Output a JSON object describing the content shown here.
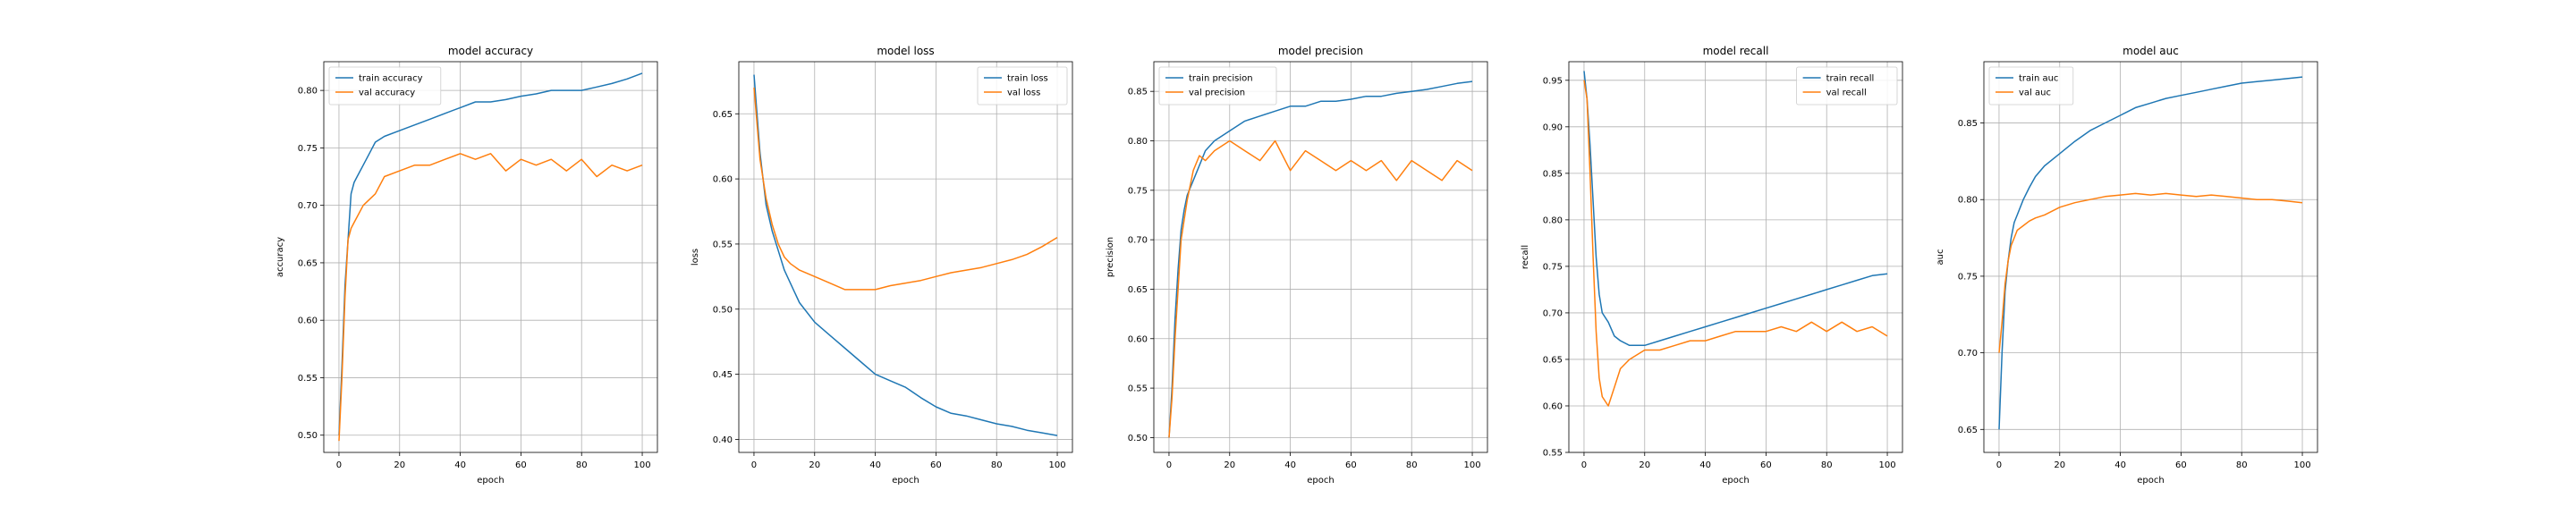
{
  "colors": {
    "train": "#1f77b4",
    "val": "#ff7f0e",
    "grid": "#b0b0b0"
  },
  "chart_data": [
    {
      "type": "line",
      "title": "model accuracy",
      "xlabel": "epoch",
      "ylabel": "accuracy",
      "xlim": [
        -5,
        105
      ],
      "ylim": [
        0.485,
        0.825
      ],
      "xticks": [
        0,
        20,
        40,
        60,
        80,
        100
      ],
      "yticks": [
        0.5,
        0.55,
        0.6,
        0.65,
        0.7,
        0.75,
        0.8
      ],
      "tick_labels_y": [
        "0.50",
        "0.55",
        "0.60",
        "0.65",
        "0.70",
        "0.75",
        "0.80"
      ],
      "tick_labels_x": [
        "0",
        "20",
        "40",
        "60",
        "80",
        "100"
      ],
      "grid": true,
      "legend_position": "top-left",
      "series": [
        {
          "name": "train accuracy",
          "color": "#1f77b4",
          "x": [
            0,
            1,
            2,
            3,
            4,
            5,
            6,
            8,
            10,
            12,
            15,
            20,
            25,
            30,
            35,
            40,
            45,
            50,
            55,
            60,
            65,
            70,
            75,
            80,
            85,
            90,
            95,
            100
          ],
          "y": [
            0.5,
            0.56,
            0.63,
            0.67,
            0.71,
            0.72,
            0.725,
            0.735,
            0.745,
            0.755,
            0.76,
            0.765,
            0.77,
            0.775,
            0.78,
            0.785,
            0.79,
            0.79,
            0.792,
            0.795,
            0.797,
            0.8,
            0.8,
            0.8,
            0.803,
            0.806,
            0.81,
            0.815
          ]
        },
        {
          "name": "val accuracy",
          "color": "#ff7f0e",
          "x": [
            0,
            1,
            2,
            3,
            4,
            5,
            6,
            8,
            10,
            12,
            15,
            20,
            25,
            30,
            35,
            40,
            45,
            50,
            55,
            60,
            65,
            70,
            75,
            80,
            85,
            90,
            95,
            100
          ],
          "y": [
            0.495,
            0.55,
            0.62,
            0.67,
            0.68,
            0.685,
            0.69,
            0.7,
            0.705,
            0.71,
            0.725,
            0.73,
            0.735,
            0.735,
            0.74,
            0.745,
            0.74,
            0.745,
            0.73,
            0.74,
            0.735,
            0.74,
            0.73,
            0.74,
            0.725,
            0.735,
            0.73,
            0.735
          ]
        }
      ]
    },
    {
      "type": "line",
      "title": "model loss",
      "xlabel": "epoch",
      "ylabel": "loss",
      "xlim": [
        -5,
        105
      ],
      "ylim": [
        0.39,
        0.69
      ],
      "xticks": [
        0,
        20,
        40,
        60,
        80,
        100
      ],
      "yticks": [
        0.4,
        0.45,
        0.5,
        0.55,
        0.6,
        0.65
      ],
      "tick_labels_y": [
        "0.40",
        "0.45",
        "0.50",
        "0.55",
        "0.60",
        "0.65"
      ],
      "tick_labels_x": [
        "0",
        "20",
        "40",
        "60",
        "80",
        "100"
      ],
      "grid": true,
      "legend_position": "top-right",
      "series": [
        {
          "name": "train loss",
          "color": "#1f77b4",
          "x": [
            0,
            2,
            4,
            6,
            8,
            10,
            12,
            15,
            20,
            25,
            30,
            35,
            40,
            45,
            50,
            55,
            60,
            65,
            70,
            75,
            80,
            85,
            90,
            95,
            100
          ],
          "y": [
            0.68,
            0.62,
            0.58,
            0.56,
            0.545,
            0.53,
            0.52,
            0.505,
            0.49,
            0.48,
            0.47,
            0.46,
            0.45,
            0.445,
            0.44,
            0.432,
            0.425,
            0.42,
            0.418,
            0.415,
            0.412,
            0.41,
            0.407,
            0.405,
            0.403
          ]
        },
        {
          "name": "val loss",
          "color": "#ff7f0e",
          "x": [
            0,
            2,
            4,
            6,
            8,
            10,
            12,
            15,
            20,
            25,
            30,
            35,
            40,
            45,
            50,
            55,
            60,
            65,
            70,
            75,
            80,
            85,
            90,
            95,
            100
          ],
          "y": [
            0.67,
            0.615,
            0.585,
            0.565,
            0.55,
            0.54,
            0.535,
            0.53,
            0.525,
            0.52,
            0.515,
            0.515,
            0.515,
            0.518,
            0.52,
            0.522,
            0.525,
            0.528,
            0.53,
            0.532,
            0.535,
            0.538,
            0.542,
            0.548,
            0.555
          ]
        }
      ]
    },
    {
      "type": "line",
      "title": "model precision",
      "xlabel": "epoch",
      "ylabel": "precision",
      "xlim": [
        -5,
        105
      ],
      "ylim": [
        0.485,
        0.88
      ],
      "xticks": [
        0,
        20,
        40,
        60,
        80,
        100
      ],
      "yticks": [
        0.5,
        0.55,
        0.6,
        0.65,
        0.7,
        0.75,
        0.8,
        0.85
      ],
      "tick_labels_y": [
        "0.50",
        "0.55",
        "0.60",
        "0.65",
        "0.70",
        "0.75",
        "0.80",
        "0.85"
      ],
      "tick_labels_x": [
        "0",
        "20",
        "40",
        "60",
        "80",
        "100"
      ],
      "grid": true,
      "legend_position": "top-left",
      "series": [
        {
          "name": "train precision",
          "color": "#1f77b4",
          "x": [
            0,
            1,
            2,
            3,
            4,
            5,
            6,
            8,
            10,
            12,
            15,
            20,
            25,
            30,
            35,
            40,
            45,
            50,
            55,
            60,
            65,
            70,
            75,
            80,
            85,
            90,
            95,
            100
          ],
          "y": [
            0.5,
            0.55,
            0.62,
            0.67,
            0.71,
            0.73,
            0.745,
            0.76,
            0.775,
            0.79,
            0.8,
            0.81,
            0.82,
            0.825,
            0.83,
            0.835,
            0.835,
            0.84,
            0.84,
            0.842,
            0.845,
            0.845,
            0.848,
            0.85,
            0.852,
            0.855,
            0.858,
            0.86
          ]
        },
        {
          "name": "val precision",
          "color": "#ff7f0e",
          "x": [
            0,
            1,
            2,
            3,
            4,
            5,
            6,
            8,
            10,
            12,
            15,
            20,
            25,
            30,
            35,
            40,
            45,
            50,
            55,
            60,
            65,
            70,
            75,
            80,
            85,
            90,
            95,
            100
          ],
          "y": [
            0.5,
            0.54,
            0.6,
            0.65,
            0.7,
            0.72,
            0.74,
            0.77,
            0.785,
            0.78,
            0.79,
            0.8,
            0.79,
            0.78,
            0.8,
            0.77,
            0.79,
            0.78,
            0.77,
            0.78,
            0.77,
            0.78,
            0.76,
            0.78,
            0.77,
            0.76,
            0.78,
            0.77
          ]
        }
      ]
    },
    {
      "type": "line",
      "title": "model recall",
      "xlabel": "epoch",
      "ylabel": "recall",
      "xlim": [
        -5,
        105
      ],
      "ylim": [
        0.55,
        0.97
      ],
      "xticks": [
        0,
        20,
        40,
        60,
        80,
        100
      ],
      "yticks": [
        0.55,
        0.6,
        0.65,
        0.7,
        0.75,
        0.8,
        0.85,
        0.9,
        0.95
      ],
      "tick_labels_y": [
        "0.55",
        "0.60",
        "0.65",
        "0.70",
        "0.75",
        "0.80",
        "0.85",
        "0.90",
        "0.95"
      ],
      "tick_labels_x": [
        "0",
        "20",
        "40",
        "60",
        "80",
        "100"
      ],
      "grid": true,
      "legend_position": "top-right",
      "series": [
        {
          "name": "train recall",
          "color": "#1f77b4",
          "x": [
            0,
            1,
            2,
            3,
            4,
            5,
            6,
            8,
            10,
            12,
            15,
            20,
            25,
            30,
            35,
            40,
            45,
            50,
            55,
            60,
            65,
            70,
            75,
            80,
            85,
            90,
            95,
            100
          ],
          "y": [
            0.96,
            0.93,
            0.88,
            0.82,
            0.76,
            0.72,
            0.7,
            0.69,
            0.675,
            0.67,
            0.665,
            0.665,
            0.67,
            0.675,
            0.68,
            0.685,
            0.69,
            0.695,
            0.7,
            0.705,
            0.71,
            0.715,
            0.72,
            0.725,
            0.73,
            0.735,
            0.74,
            0.742
          ]
        },
        {
          "name": "val recall",
          "color": "#ff7f0e",
          "x": [
            0,
            1,
            2,
            3,
            4,
            5,
            6,
            8,
            10,
            12,
            15,
            20,
            25,
            30,
            35,
            40,
            45,
            50,
            55,
            60,
            65,
            70,
            75,
            80,
            85,
            90,
            95,
            100
          ],
          "y": [
            0.95,
            0.93,
            0.85,
            0.76,
            0.68,
            0.63,
            0.61,
            0.6,
            0.62,
            0.64,
            0.65,
            0.66,
            0.66,
            0.665,
            0.67,
            0.67,
            0.675,
            0.68,
            0.68,
            0.68,
            0.685,
            0.68,
            0.69,
            0.68,
            0.69,
            0.68,
            0.685,
            0.675
          ]
        }
      ]
    },
    {
      "type": "line",
      "title": "model auc",
      "xlabel": "epoch",
      "ylabel": "auc",
      "xlim": [
        -5,
        105
      ],
      "ylim": [
        0.635,
        0.89
      ],
      "xticks": [
        0,
        20,
        40,
        60,
        80,
        100
      ],
      "yticks": [
        0.65,
        0.7,
        0.75,
        0.8,
        0.85
      ],
      "tick_labels_y": [
        "0.65",
        "0.70",
        "0.75",
        "0.80",
        "0.85"
      ],
      "tick_labels_x": [
        "0",
        "20",
        "40",
        "60",
        "80",
        "100"
      ],
      "grid": true,
      "legend_position": "top-left",
      "series": [
        {
          "name": "train auc",
          "color": "#1f77b4",
          "x": [
            0,
            1,
            2,
            3,
            4,
            5,
            6,
            8,
            10,
            12,
            15,
            20,
            25,
            30,
            35,
            40,
            45,
            50,
            55,
            60,
            65,
            70,
            75,
            80,
            85,
            90,
            95,
            100
          ],
          "y": [
            0.65,
            0.7,
            0.74,
            0.76,
            0.775,
            0.785,
            0.79,
            0.8,
            0.808,
            0.815,
            0.822,
            0.83,
            0.838,
            0.845,
            0.85,
            0.855,
            0.86,
            0.863,
            0.866,
            0.868,
            0.87,
            0.872,
            0.874,
            0.876,
            0.877,
            0.878,
            0.879,
            0.88
          ]
        },
        {
          "name": "val auc",
          "color": "#ff7f0e",
          "x": [
            0,
            1,
            2,
            3,
            4,
            5,
            6,
            8,
            10,
            12,
            15,
            20,
            25,
            30,
            35,
            40,
            45,
            50,
            55,
            60,
            65,
            70,
            75,
            80,
            85,
            90,
            95,
            100
          ],
          "y": [
            0.7,
            0.72,
            0.745,
            0.76,
            0.77,
            0.775,
            0.78,
            0.783,
            0.786,
            0.788,
            0.79,
            0.795,
            0.798,
            0.8,
            0.802,
            0.803,
            0.804,
            0.803,
            0.804,
            0.803,
            0.802,
            0.803,
            0.802,
            0.801,
            0.8,
            0.8,
            0.799,
            0.798
          ]
        }
      ]
    }
  ]
}
